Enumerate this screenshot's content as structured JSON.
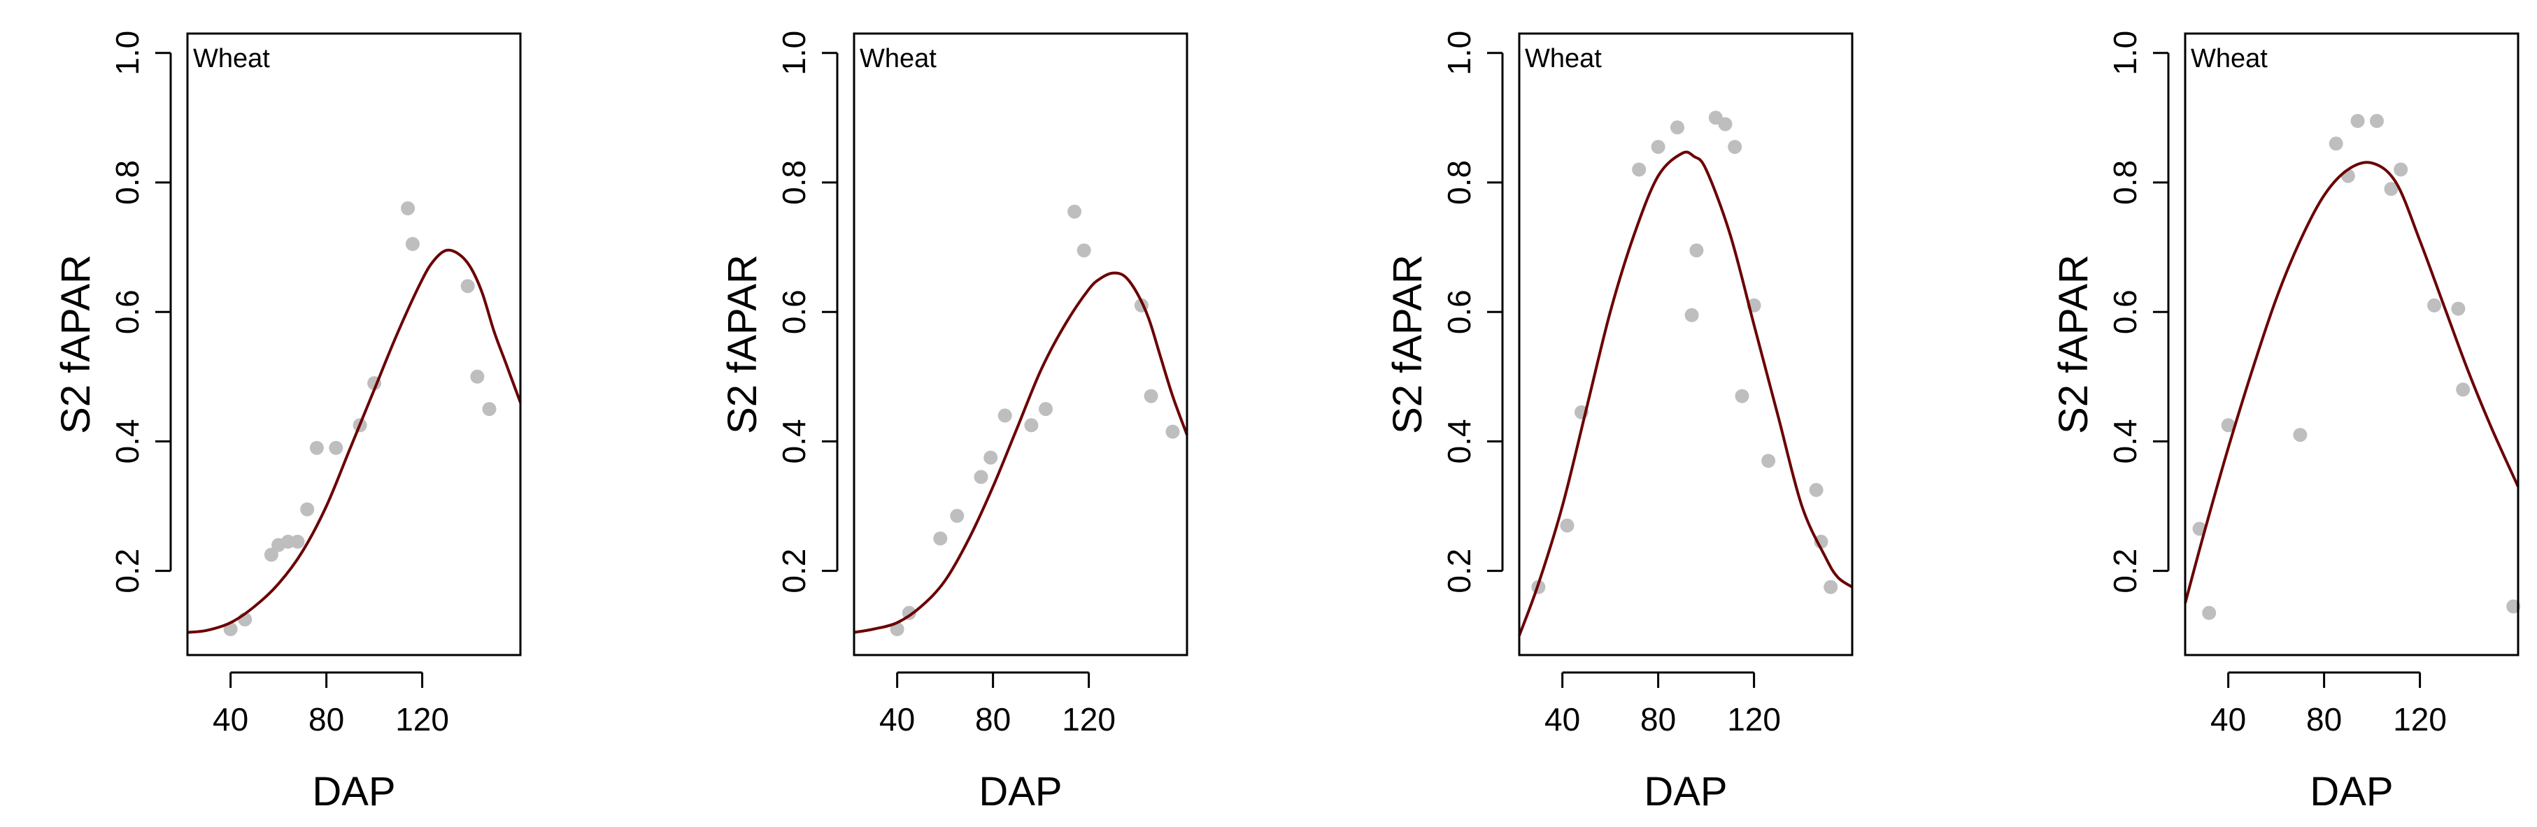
{
  "colors": {
    "points": "#bebebe",
    "curve": "#6b0000",
    "axis": "#000000",
    "background": "#ffffff"
  },
  "chart_data": [
    {
      "type": "scatter",
      "label": "Wheat",
      "xlabel": "DAP",
      "ylabel": "S2 fAPAR",
      "xlim": [
        22,
        161
      ],
      "ylim": [
        0.07,
        1.03
      ],
      "xticks": [
        40,
        80,
        120
      ],
      "yticks": [
        0.2,
        0.4,
        0.6,
        0.8,
        1.0
      ],
      "points": {
        "x": [
          40,
          46,
          57,
          60,
          64,
          68,
          72,
          76,
          84,
          94,
          100,
          114,
          116,
          139,
          143,
          148
        ],
        "y": [
          0.11,
          0.125,
          0.225,
          0.24,
          0.245,
          0.245,
          0.295,
          0.39,
          0.39,
          0.425,
          0.49,
          0.76,
          0.705,
          0.64,
          0.5,
          0.45
        ]
      },
      "fit_curve": {
        "x": [
          22,
          30,
          40,
          50,
          60,
          70,
          80,
          90,
          100,
          110,
          120,
          125,
          130,
          135,
          140,
          145,
          150,
          155,
          161
        ],
        "y": [
          0.105,
          0.108,
          0.12,
          0.145,
          0.18,
          0.23,
          0.3,
          0.39,
          0.48,
          0.57,
          0.65,
          0.68,
          0.695,
          0.69,
          0.67,
          0.63,
          0.57,
          0.52,
          0.46
        ]
      }
    },
    {
      "type": "scatter",
      "label": "Wheat",
      "xlabel": "DAP",
      "ylabel": "S2 fAPAR",
      "xlim": [
        22,
        161
      ],
      "ylim": [
        0.07,
        1.03
      ],
      "xticks": [
        40,
        80,
        120
      ],
      "yticks": [
        0.2,
        0.4,
        0.6,
        0.8,
        1.0
      ],
      "points": {
        "x": [
          40,
          45,
          58,
          65,
          75,
          79,
          85,
          96,
          102,
          114,
          118,
          142,
          146,
          155
        ],
        "y": [
          0.11,
          0.135,
          0.25,
          0.285,
          0.345,
          0.375,
          0.44,
          0.425,
          0.45,
          0.755,
          0.695,
          0.61,
          0.47,
          0.415
        ]
      },
      "fit_curve": {
        "x": [
          22,
          30,
          40,
          50,
          60,
          70,
          80,
          90,
          100,
          110,
          120,
          125,
          130,
          135,
          140,
          145,
          150,
          155,
          161
        ],
        "y": [
          0.105,
          0.11,
          0.12,
          0.145,
          0.185,
          0.25,
          0.33,
          0.42,
          0.51,
          0.58,
          0.635,
          0.652,
          0.66,
          0.655,
          0.63,
          0.59,
          0.53,
          0.47,
          0.41
        ]
      }
    },
    {
      "type": "scatter",
      "label": "Wheat",
      "xlabel": "DAP",
      "ylabel": "S2 fAPAR",
      "xlim": [
        22,
        161
      ],
      "ylim": [
        0.07,
        1.03
      ],
      "xticks": [
        40,
        80,
        120
      ],
      "yticks": [
        0.2,
        0.4,
        0.6,
        0.8,
        1.0
      ],
      "points": {
        "x": [
          30,
          42,
          48,
          72,
          80,
          88,
          94,
          96,
          104,
          108,
          112,
          115,
          120,
          126,
          146,
          148,
          152
        ],
        "y": [
          0.175,
          0.27,
          0.445,
          0.82,
          0.855,
          0.885,
          0.595,
          0.695,
          0.9,
          0.89,
          0.855,
          0.47,
          0.61,
          0.37,
          0.325,
          0.245,
          0.175
        ]
      },
      "fit_curve": {
        "x": [
          22,
          30,
          40,
          50,
          60,
          70,
          80,
          90,
          95,
          100,
          110,
          120,
          130,
          140,
          150,
          155,
          161
        ],
        "y": [
          0.1,
          0.18,
          0.3,
          0.45,
          0.6,
          0.72,
          0.81,
          0.845,
          0.84,
          0.82,
          0.72,
          0.58,
          0.44,
          0.3,
          0.22,
          0.19,
          0.175
        ]
      }
    },
    {
      "type": "scatter",
      "label": "Wheat",
      "xlabel": "DAP",
      "ylabel": "S2 fAPAR",
      "xlim": [
        22,
        161
      ],
      "ylim": [
        0.07,
        1.03
      ],
      "xticks": [
        40,
        80,
        120
      ],
      "yticks": [
        0.2,
        0.4,
        0.6,
        0.8,
        1.0
      ],
      "points": {
        "x": [
          28,
          32,
          40,
          70,
          85,
          90,
          94,
          102,
          108,
          112,
          126,
          136,
          138,
          159
        ],
        "y": [
          0.265,
          0.135,
          0.425,
          0.41,
          0.86,
          0.81,
          0.895,
          0.895,
          0.79,
          0.82,
          0.61,
          0.605,
          0.48,
          0.145
        ]
      },
      "fit_curve": {
        "x": [
          22,
          30,
          40,
          50,
          60,
          70,
          80,
          90,
          100,
          110,
          120,
          130,
          140,
          150,
          161
        ],
        "y": [
          0.15,
          0.26,
          0.39,
          0.51,
          0.62,
          0.71,
          0.78,
          0.82,
          0.83,
          0.8,
          0.71,
          0.61,
          0.51,
          0.42,
          0.33
        ]
      }
    }
  ]
}
